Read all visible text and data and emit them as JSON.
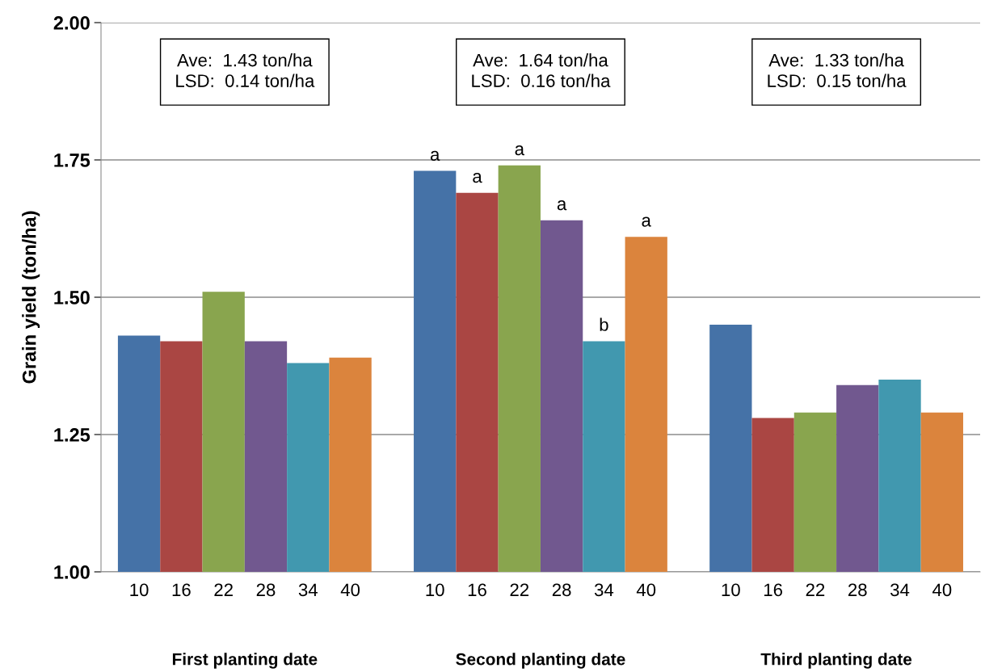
{
  "chart_data": {
    "type": "bar",
    "ylabel": "Grain yield (ton/ha)",
    "categories": [
      "10",
      "16",
      "22",
      "28",
      "34",
      "40",
      null,
      "10",
      "16",
      "22",
      "28",
      "34",
      "40",
      null,
      "10",
      "16",
      "22",
      "28",
      "34",
      "40"
    ],
    "values": [
      1.43,
      1.42,
      1.51,
      1.42,
      1.38,
      1.39,
      null,
      1.73,
      1.69,
      1.74,
      1.64,
      1.42,
      1.61,
      null,
      1.45,
      1.28,
      1.29,
      1.34,
      1.35,
      1.29
    ],
    "colors": [
      "#4572a7",
      "#aa4643",
      "#89a54e",
      "#71588f",
      "#4198af",
      "#db843d",
      null,
      "#4572a7",
      "#aa4643",
      "#89a54e",
      "#71588f",
      "#4198af",
      "#db843d",
      null,
      "#4572a7",
      "#aa4643",
      "#89a54e",
      "#71588f",
      "#4198af",
      "#db843d"
    ],
    "value_labels": [
      null,
      null,
      null,
      null,
      null,
      null,
      null,
      "a",
      "a",
      "a",
      "a",
      "b",
      "a",
      null,
      null,
      null,
      null,
      null,
      null,
      null
    ],
    "ylim": [
      1.0,
      2.0
    ],
    "yticks": [
      {
        "value": 1.0,
        "label": "1.00"
      },
      {
        "value": 1.25,
        "label": "1.25"
      },
      {
        "value": 1.5,
        "label": "1.50"
      },
      {
        "value": 1.75,
        "label": "1.75"
      },
      {
        "value": 2.0,
        "label": "2.00"
      }
    ],
    "grid": "y",
    "annotations": [
      "Ave:  1.43 ton/ha\nLSD:  0.14 ton/ha",
      "Ave:  1.64 ton/ha\nLSD:  0.16 ton/ha",
      "Ave:  1.33 ton/ha\nLSD:  0.15 ton/ha",
      "First planting date",
      "Second planting date",
      "Third planting date"
    ]
  }
}
